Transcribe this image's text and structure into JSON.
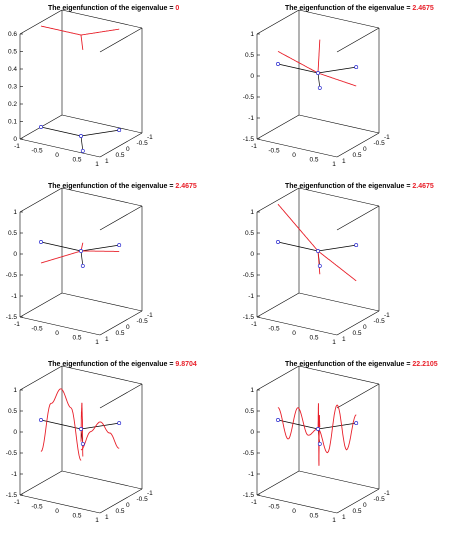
{
  "title_prefix": "The eigenfunction of the eigenvalue =",
  "colors": {
    "value": "#e8202a",
    "curve": "#e8202a",
    "node": "#2a2ad0",
    "axes": "#000000"
  },
  "chart_data": [
    {
      "type": "line",
      "title": "The eigenfunction of the eigenvalue =",
      "eigenvalue": "0",
      "zlim": [
        0,
        0.6
      ],
      "zticks": [
        "0",
        "0.1",
        "0.2",
        "0.3",
        "0.4",
        "0.5",
        "0.6"
      ],
      "xticks": [
        "-1",
        "-0.5",
        "0",
        "0.5",
        "1"
      ],
      "yticks": [
        "1",
        "0.5",
        "0",
        "-0.5",
        "-1"
      ],
      "edges": [
        {
          "from": [
            -1,
            0
          ],
          "to": [
            0,
            0
          ],
          "values": [
            0.577,
            0.577
          ]
        },
        {
          "from": [
            0,
            0
          ],
          "to": [
            0.5,
            0.866
          ],
          "values": [
            0.577,
            0.577
          ]
        },
        {
          "from": [
            0,
            0
          ],
          "to": [
            0.5,
            -0.866
          ],
          "values": [
            0.577,
            0.577
          ]
        }
      ]
    },
    {
      "type": "line",
      "title": "The eigenfunction of the eigenvalue =",
      "eigenvalue": "2.4675",
      "zlim": [
        -1.5,
        1
      ],
      "zticks": [
        "-1.5",
        "-1",
        "-0.5",
        "0",
        "0.5",
        "1"
      ],
      "xticks": [
        "-1",
        "-0.5",
        "0",
        "0.5",
        "1"
      ],
      "yticks": [
        "1",
        "0.5",
        "0",
        "-0.5",
        "-1"
      ],
      "edges": [
        {
          "from": [
            -1,
            0
          ],
          "to": [
            0,
            0
          ],
          "values": [
            0.3,
            0.0
          ]
        },
        {
          "from": [
            0,
            0
          ],
          "to": [
            0.5,
            0.866
          ],
          "values": [
            0.0,
            1.15
          ]
        },
        {
          "from": [
            0,
            0
          ],
          "to": [
            0.5,
            -0.866
          ],
          "values": [
            0.0,
            -0.45
          ]
        }
      ]
    },
    {
      "type": "line",
      "title": "The eigenfunction of the eigenvalue =",
      "eigenvalue": "2.4675",
      "zlim": [
        -1.5,
        1
      ],
      "zticks": [
        "-1.5",
        "-1",
        "-0.5",
        "0",
        "0.5",
        "1"
      ],
      "xticks": [
        "-1",
        "-0.5",
        "0",
        "0.5",
        "1"
      ],
      "yticks": [
        "1",
        "0.5",
        "0",
        "-0.5",
        "-1"
      ],
      "edges": [
        {
          "from": [
            -1,
            0
          ],
          "to": [
            0,
            0
          ],
          "values": [
            -0.5,
            0.0
          ]
        },
        {
          "from": [
            0,
            0
          ],
          "to": [
            0.5,
            0.866
          ],
          "values": [
            0.0,
            0.55
          ]
        },
        {
          "from": [
            0,
            0
          ],
          "to": [
            0.5,
            -0.866
          ],
          "values": [
            0.0,
            -0.15
          ]
        }
      ]
    },
    {
      "type": "line",
      "title": "The eigenfunction of the eigenvalue =",
      "eigenvalue": "2.4675",
      "zlim": [
        -1.5,
        1
      ],
      "zticks": [
        "-1.5",
        "-1",
        "-0.5",
        "0",
        "0.5",
        "1"
      ],
      "xticks": [
        "-1",
        "-0.5",
        "0",
        "0.5",
        "1"
      ],
      "yticks": [
        "1",
        "0.5",
        "0",
        "-0.5",
        "-1"
      ],
      "edges": [
        {
          "from": [
            -1,
            0
          ],
          "to": [
            0,
            0
          ],
          "values": [
            0.9,
            0.0
          ]
        },
        {
          "from": [
            0,
            0
          ],
          "to": [
            0.5,
            0.866
          ],
          "values": [
            0.0,
            -0.2
          ]
        },
        {
          "from": [
            0,
            0
          ],
          "to": [
            0.5,
            -0.866
          ],
          "values": [
            0.0,
            -0.85
          ]
        }
      ]
    },
    {
      "type": "line",
      "title": "The eigenfunction of the eigenvalue =",
      "eigenvalue": "9.8704",
      "zlim": [
        -1.5,
        1
      ],
      "zticks": [
        "-1.5",
        "-1",
        "-0.5",
        "0",
        "0.5",
        "1"
      ],
      "xticks": [
        "-1",
        "-0.5",
        "0",
        "0.5",
        "1"
      ],
      "yticks": [
        "1",
        "0.5",
        "0",
        "-0.5",
        "-1"
      ],
      "edges": [
        {
          "from": [
            -1,
            0
          ],
          "to": [
            0,
            0
          ],
          "values": [
            -0.75,
            0.45,
            0.85,
            0.45,
            -0.75
          ],
          "curved": true
        },
        {
          "from": [
            0,
            0
          ],
          "to": [
            0.5,
            0.866
          ],
          "values": [
            -0.3,
            0.5,
            0.8,
            0.5,
            -0.3
          ],
          "curved": true
        },
        {
          "from": [
            0,
            0
          ],
          "to": [
            0.5,
            -0.866
          ],
          "values": [
            -0.5,
            -0.1,
            0.1,
            -0.2,
            -0.6
          ],
          "curved": true
        }
      ]
    },
    {
      "type": "line",
      "title": "The eigenfunction of the eigenvalue =",
      "eigenvalue": "22.2105",
      "zlim": [
        -1.5,
        1
      ],
      "zticks": [
        "-1.5",
        "-1",
        "-0.5",
        "0",
        "0.5",
        "1"
      ],
      "xticks": [
        "-1",
        "-0.5",
        "0",
        "0.5",
        "1"
      ],
      "yticks": [
        "1",
        "0.5",
        "0",
        "-0.5",
        "-1"
      ],
      "edges": [
        {
          "from": [
            -1,
            0
          ],
          "to": [
            0,
            0
          ],
          "values": [
            0.3,
            -0.4,
            0.4,
            -0.2,
            0.0
          ],
          "curved": true
        },
        {
          "from": [
            0,
            0
          ],
          "to": [
            0.5,
            0.866
          ],
          "values": [
            0.0,
            0.7,
            -0.7,
            0.6,
            0.4
          ],
          "curved": true
        },
        {
          "from": [
            0,
            0
          ],
          "to": [
            0.5,
            -0.866
          ],
          "values": [
            0.0,
            -0.6,
            0.5,
            -0.6,
            0.2
          ],
          "curved": true
        }
      ]
    }
  ]
}
